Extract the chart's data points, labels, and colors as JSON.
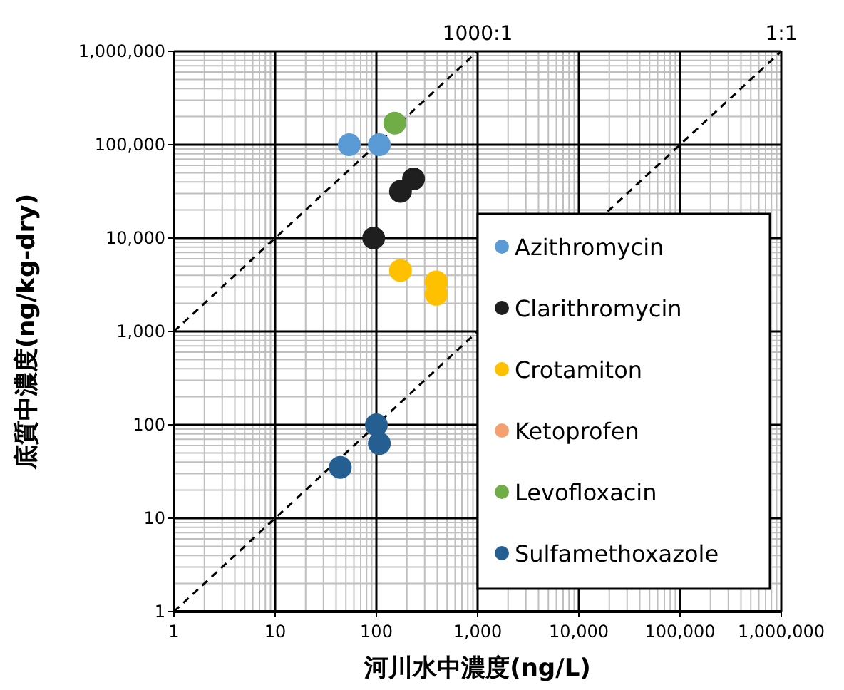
{
  "chart_data": {
    "type": "scatter",
    "xlabel": "河川水中濃度(ng/L)",
    "ylabel": "底質中濃度(ng/kg-dry)",
    "log": "xy",
    "grid": true,
    "legend": "bottom right",
    "marker": "circle",
    "xlim": [
      1,
      1000000
    ],
    "ylim": [
      1,
      1000000
    ],
    "xticks": [
      1,
      10,
      100,
      {
        "value": 1000,
        "label": "1,000"
      },
      {
        "value": 10000,
        "label": "10,000"
      },
      {
        "value": 100000,
        "label": "100,000"
      },
      {
        "value": 1000000,
        "label": "1,000,000"
      }
    ],
    "yticks": [
      1,
      10,
      100,
      {
        "value": 1000,
        "label": "1,000"
      },
      {
        "value": 10000,
        "label": "10,000"
      },
      {
        "value": 100000,
        "label": "100,000"
      },
      {
        "value": 1000000,
        "label": "1,000,000"
      }
    ],
    "series": [
      {
        "name": "1000:1",
        "type": "line",
        "line_style": "dashed",
        "marker": "none",
        "color": "#000000",
        "x": [
          1,
          1000
        ],
        "values": [
          1000,
          1000000
        ]
      },
      {
        "name": "1:1",
        "type": "line",
        "line_style": "dashed",
        "marker": "none",
        "color": "#000000",
        "x": [
          1,
          1000000
        ],
        "values": [
          1,
          1000000
        ]
      },
      {
        "name": "Azithromycin",
        "color": "#5b9bd5",
        "x": [
          54,
          107
        ],
        "values": [
          100000,
          100000
        ]
      },
      {
        "name": "Clarithromycin",
        "color": "#1f1f1f",
        "x": [
          233,
          173,
          94
        ],
        "values": [
          43000,
          31600,
          10000
        ]
      },
      {
        "name": "Crotamiton",
        "color": "#ffc000",
        "x": [
          173,
          390,
          390
        ],
        "values": [
          4500,
          3400,
          2500
        ]
      },
      {
        "name": "Ketoprofen",
        "color": "#f4a070"
      },
      {
        "name": "Levofloxacin",
        "color": "#70ad47",
        "x": [
          152
        ],
        "values": [
          170000
        ]
      },
      {
        "name": "Sulfamethoxazole",
        "color": "#255e91",
        "x": [
          100,
          107,
          44
        ],
        "values": [
          100,
          63,
          35
        ]
      }
    ]
  }
}
